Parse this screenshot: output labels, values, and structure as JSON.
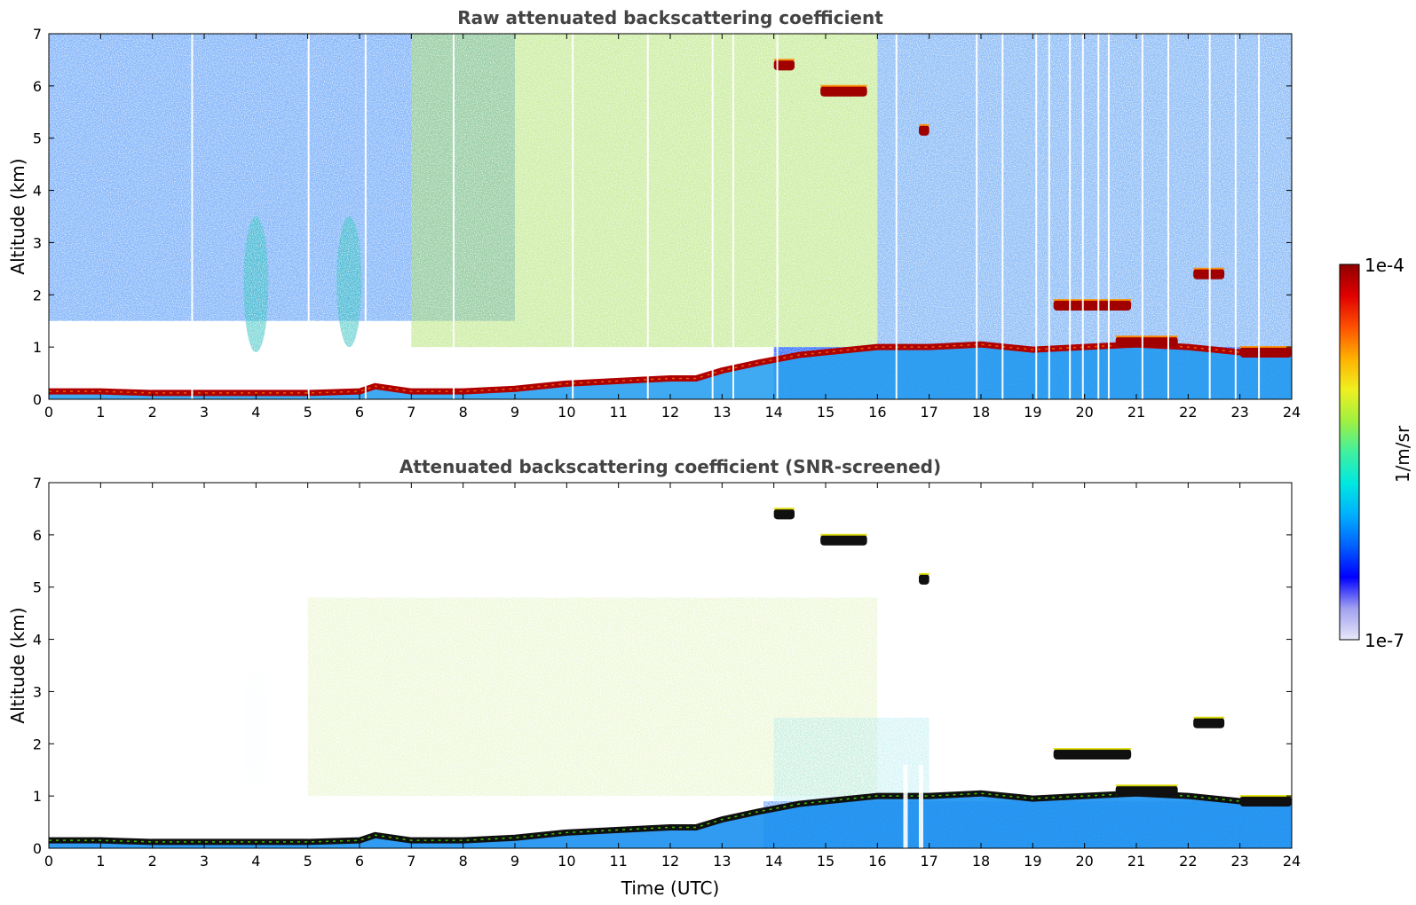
{
  "chart_data": [
    {
      "type": "heatmap",
      "title": "Raw attenuated backscattering coefficient",
      "xlabel": "",
      "ylabel": "Altitude (km)",
      "xlim": [
        0,
        24
      ],
      "ylim": [
        0,
        7
      ],
      "x_ticks": [
        0,
        1,
        2,
        3,
        4,
        5,
        6,
        7,
        8,
        9,
        10,
        11,
        12,
        13,
        14,
        15,
        16,
        17,
        18,
        19,
        20,
        21,
        22,
        23,
        24
      ],
      "y_ticks": [
        0,
        1,
        2,
        3,
        4,
        5,
        6,
        7
      ],
      "boundary_layer_top_km": [
        [
          0,
          0.15
        ],
        [
          1,
          0.15
        ],
        [
          2,
          0.12
        ],
        [
          3,
          0.12
        ],
        [
          4,
          0.12
        ],
        [
          5,
          0.12
        ],
        [
          6,
          0.15
        ],
        [
          6.3,
          0.25
        ],
        [
          7,
          0.15
        ],
        [
          8,
          0.15
        ],
        [
          9,
          0.2
        ],
        [
          10,
          0.3
        ],
        [
          11,
          0.35
        ],
        [
          12,
          0.4
        ],
        [
          12.5,
          0.4
        ],
        [
          13,
          0.55
        ],
        [
          13.7,
          0.7
        ],
        [
          14.5,
          0.85
        ],
        [
          15,
          0.9
        ],
        [
          16,
          1.0
        ],
        [
          17,
          1.0
        ],
        [
          18,
          1.05
        ],
        [
          19,
          0.95
        ],
        [
          20,
          1.0
        ],
        [
          21,
          1.05
        ],
        [
          22,
          1.0
        ],
        [
          23,
          0.9
        ],
        [
          24,
          0.9
        ]
      ],
      "cloud_layers": [
        {
          "t_start": 14.0,
          "t_end": 14.4,
          "altitude_km": 6.4
        },
        {
          "t_start": 14.9,
          "t_end": 15.8,
          "altitude_km": 5.9
        },
        {
          "t_start": 16.8,
          "t_end": 17.0,
          "altitude_km": 5.15
        },
        {
          "t_start": 19.4,
          "t_end": 20.9,
          "altitude_km": 1.8
        },
        {
          "t_start": 20.6,
          "t_end": 21.8,
          "altitude_km": 1.1
        },
        {
          "t_start": 22.1,
          "t_end": 22.7,
          "altitude_km": 2.4
        },
        {
          "t_start": 23.0,
          "t_end": 24.0,
          "altitude_km": 0.9
        }
      ],
      "aerosol_plumes": [
        {
          "t_center": 4.0,
          "alt_min_km": 0.9,
          "alt_max_km": 3.5
        },
        {
          "t_center": 5.8,
          "alt_min_km": 1.0,
          "alt_max_km": 3.5
        }
      ]
    },
    {
      "type": "heatmap",
      "title": "Attenuated backscattering coefficient (SNR-screened)",
      "xlabel": "Time (UTC)",
      "ylabel": "Altitude (km)",
      "xlim": [
        0,
        24
      ],
      "ylim": [
        0,
        7
      ],
      "x_ticks": [
        0,
        1,
        2,
        3,
        4,
        5,
        6,
        7,
        8,
        9,
        10,
        11,
        12,
        13,
        14,
        15,
        16,
        17,
        18,
        19,
        20,
        21,
        22,
        23,
        24
      ],
      "y_ticks": [
        0,
        1,
        2,
        3,
        4,
        5,
        6,
        7
      ],
      "boundary_layer_top_km": [
        [
          0,
          0.15
        ],
        [
          1,
          0.15
        ],
        [
          2,
          0.12
        ],
        [
          3,
          0.12
        ],
        [
          4,
          0.12
        ],
        [
          5,
          0.12
        ],
        [
          6,
          0.15
        ],
        [
          6.3,
          0.25
        ],
        [
          7,
          0.15
        ],
        [
          8,
          0.15
        ],
        [
          9,
          0.2
        ],
        [
          10,
          0.3
        ],
        [
          11,
          0.35
        ],
        [
          12,
          0.4
        ],
        [
          12.5,
          0.4
        ],
        [
          13,
          0.55
        ],
        [
          13.7,
          0.7
        ],
        [
          14.5,
          0.85
        ],
        [
          15,
          0.9
        ],
        [
          16,
          1.0
        ],
        [
          17,
          1.0
        ],
        [
          18,
          1.05
        ],
        [
          19,
          0.95
        ],
        [
          20,
          1.0
        ],
        [
          21,
          1.05
        ],
        [
          22,
          1.0
        ],
        [
          23,
          0.9
        ],
        [
          24,
          0.9
        ]
      ],
      "cloud_layers": [
        {
          "t_start": 14.0,
          "t_end": 14.4,
          "altitude_km": 6.4
        },
        {
          "t_start": 14.9,
          "t_end": 15.8,
          "altitude_km": 5.9
        },
        {
          "t_start": 16.8,
          "t_end": 17.0,
          "altitude_km": 5.15
        },
        {
          "t_start": 19.4,
          "t_end": 20.9,
          "altitude_km": 1.8
        },
        {
          "t_start": 20.6,
          "t_end": 21.8,
          "altitude_km": 1.1
        },
        {
          "t_start": 22.1,
          "t_end": 22.7,
          "altitude_km": 2.4
        },
        {
          "t_start": 23.0,
          "t_end": 24.0,
          "altitude_km": 0.9
        }
      ],
      "aerosol_plumes": [
        {
          "t_center": 4.0,
          "alt_min_km": 1.1,
          "alt_max_km": 3.5
        }
      ]
    }
  ],
  "colorbar": {
    "label": "1/m/sr",
    "max_label": "1e-4",
    "min_label": "1e-7",
    "colors": [
      "#e8e8f8",
      "#a0a0f0",
      "#0000ff",
      "#0060ff",
      "#00b0ff",
      "#00e8e0",
      "#40f0a0",
      "#a0f040",
      "#f0f020",
      "#ffb000",
      "#ff5000",
      "#e00000",
      "#900000"
    ]
  }
}
